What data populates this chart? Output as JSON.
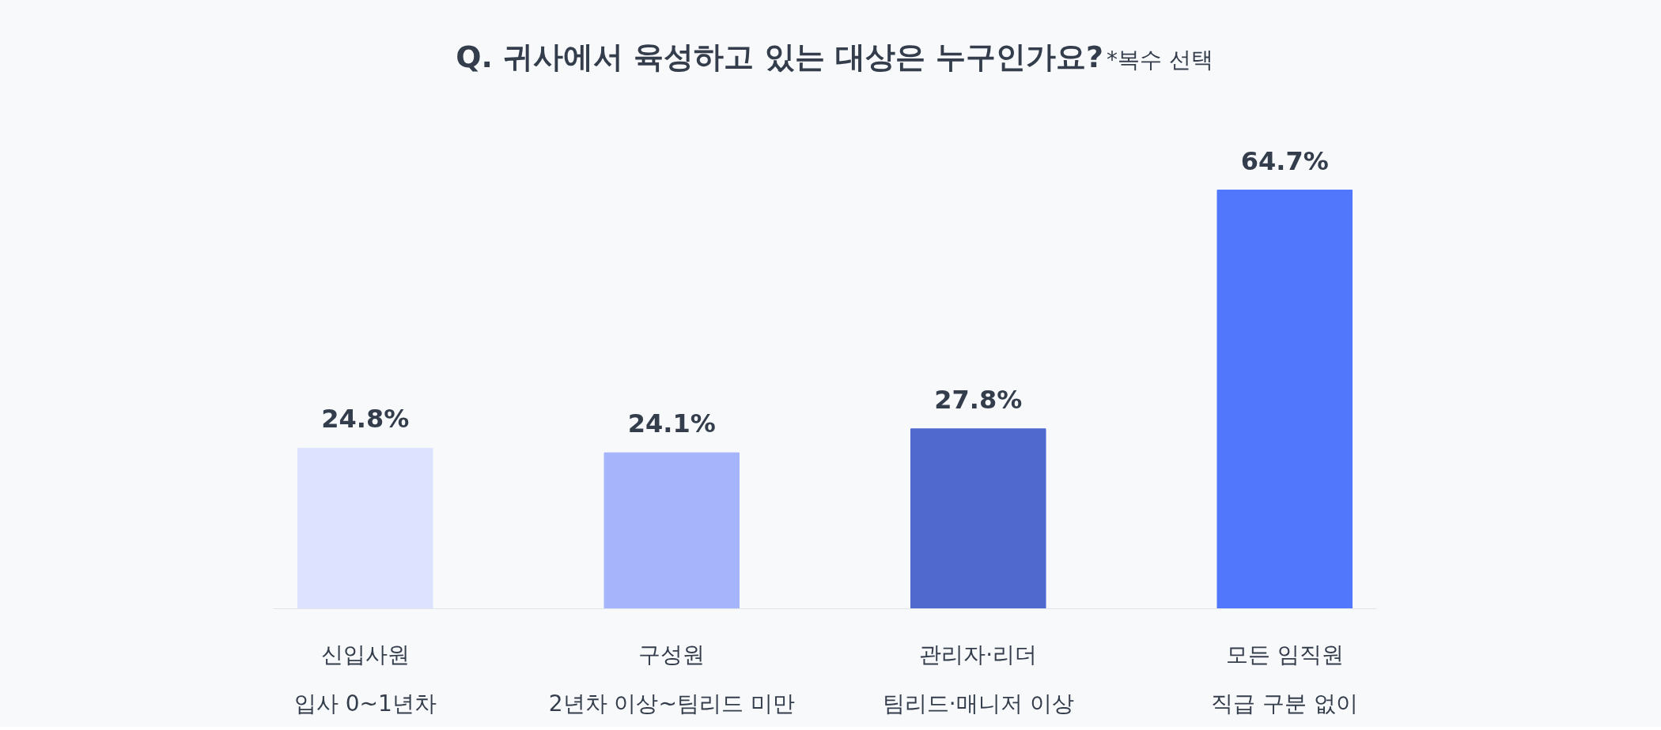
{
  "chart_data": {
    "type": "bar",
    "title": "Q. 귀사에서 육성하고 있는 대상은 누구인가요?",
    "subtitle": "*복수 선택",
    "categories": [
      "신입사원\n입사 0~1년차",
      "구성원\n2년차 이상~팀리드 미만",
      "관리자·리더\n팀리드·매니저 이상",
      "모든 임직원\n직급 구분 없이"
    ],
    "values": [
      24.8,
      24.1,
      27.8,
      64.7
    ],
    "colors": [
      "#dde3ff",
      "#a6b4fc",
      "#4f69cf",
      "#5177fd"
    ],
    "value_labels": [
      "24.8%",
      "24.1%",
      "27.8%",
      "64.7%"
    ],
    "grid": false,
    "tick_labels": "x"
  }
}
